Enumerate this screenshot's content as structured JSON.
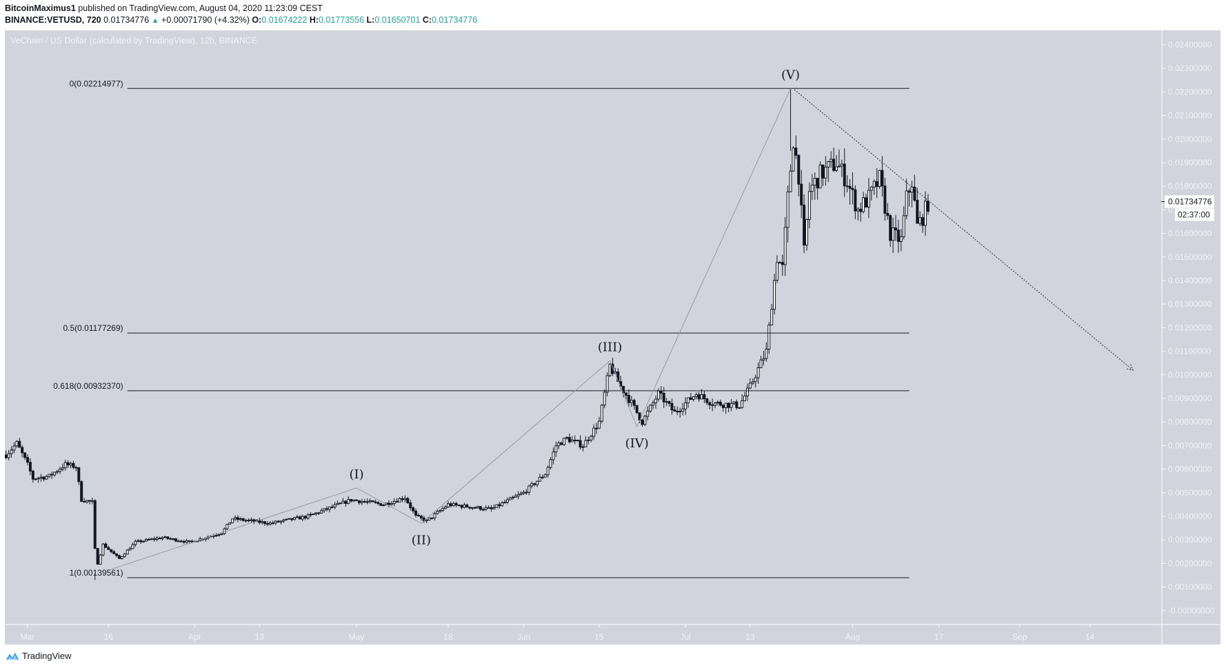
{
  "header": {
    "author": "BitcoinMaximus1",
    "published_text": "published on TradingView.com, August 04, 2020 11:23:09 CEST",
    "symbol": "BINANCE:VETUSD, 720",
    "last_price": "0.01734776",
    "change": "+0.00071790 (+4.32%)",
    "o_label": "O:",
    "o_value": "0.01674222",
    "h_label": "H:",
    "h_value": "0.01773556",
    "l_label": "L:",
    "l_value": "0.01650701",
    "c_label": "C:",
    "c_value": "0.01734776"
  },
  "chart_title": "VeChain / US Dollar (calculated by TradingView), 12h, BINANCE",
  "price_label": {
    "value": "0.01734776",
    "countdown": "02:37:00"
  },
  "footer": {
    "brand": "TradingView"
  },
  "colors": {
    "pane_bg": "#d1d4dc",
    "axis_text": "#f0f3fa",
    "candle_down": "#131722",
    "candle_up_fill": "#ffffff",
    "header_values": "#26a69a",
    "logo": "#2196f3"
  },
  "chart_data": {
    "type": "candlestick",
    "title": "VeChain / US Dollar (calculated by TradingView), 12h, BINANCE",
    "xlabel": "",
    "ylabel": "",
    "ylim": [
      -0.0,
      0.024
    ],
    "y_ticks": [
      "0.02400000",
      "0.02300000",
      "0.02200000",
      "0.02100000",
      "0.02000000",
      "0.01900000",
      "0.01800000",
      "0.01700000",
      "0.01600000",
      "0.01500000",
      "0.01400000",
      "0.01300000",
      "0.01200000",
      "0.01100000",
      "0.01000000",
      "0.00900000",
      "0.00800000",
      "0.00700000",
      "0.00600000",
      "0.00500000",
      "0.00400000",
      "0.00300000",
      "0.00200000",
      "0.00100000",
      "-0.00000000"
    ],
    "x_ticks": [
      {
        "label": "Mar",
        "day": 0
      },
      {
        "label": "16",
        "day": 15
      },
      {
        "label": "Apr",
        "day": 31
      },
      {
        "label": "13",
        "day": 43
      },
      {
        "label": "May",
        "day": 61
      },
      {
        "label": "18",
        "day": 78
      },
      {
        "label": "Jun",
        "day": 92
      },
      {
        "label": "15",
        "day": 106
      },
      {
        "label": "Jul",
        "day": 122
      },
      {
        "label": "13",
        "day": 134
      },
      {
        "label": "Aug",
        "day": 153
      },
      {
        "label": "17",
        "day": 169
      },
      {
        "label": "Sep",
        "day": 184
      },
      {
        "label": "14",
        "day": 197
      }
    ],
    "price_path_keypoints": [
      {
        "day": -4,
        "price": 0.0066
      },
      {
        "day": -2,
        "price": 0.0071
      },
      {
        "day": 0,
        "price": 0.0062
      },
      {
        "day": 1,
        "price": 0.0056
      },
      {
        "day": 4,
        "price": 0.0057
      },
      {
        "day": 7,
        "price": 0.0062
      },
      {
        "day": 9,
        "price": 0.0061
      },
      {
        "day": 10,
        "price": 0.0047
      },
      {
        "day": 12,
        "price": 0.0046
      },
      {
        "day": 12.5,
        "price": 0.0026
      },
      {
        "day": 13,
        "price": 0.002
      },
      {
        "day": 14,
        "price": 0.0028
      },
      {
        "day": 16,
        "price": 0.0024
      },
      {
        "day": 17,
        "price": 0.0022
      },
      {
        "day": 20,
        "price": 0.0029
      },
      {
        "day": 25,
        "price": 0.0031
      },
      {
        "day": 30,
        "price": 0.0029
      },
      {
        "day": 36,
        "price": 0.0033
      },
      {
        "day": 38,
        "price": 0.0039
      },
      {
        "day": 45,
        "price": 0.0037
      },
      {
        "day": 52,
        "price": 0.004
      },
      {
        "day": 60,
        "price": 0.0047
      },
      {
        "day": 66,
        "price": 0.0045
      },
      {
        "day": 70,
        "price": 0.0048
      },
      {
        "day": 72,
        "price": 0.004
      },
      {
        "day": 74,
        "price": 0.0038
      },
      {
        "day": 78,
        "price": 0.0045
      },
      {
        "day": 86,
        "price": 0.0043
      },
      {
        "day": 92,
        "price": 0.005
      },
      {
        "day": 96,
        "price": 0.0058
      },
      {
        "day": 98,
        "price": 0.007
      },
      {
        "day": 100,
        "price": 0.0073
      },
      {
        "day": 103,
        "price": 0.007
      },
      {
        "day": 106,
        "price": 0.008
      },
      {
        "day": 108,
        "price": 0.0104
      },
      {
        "day": 110,
        "price": 0.0095
      },
      {
        "day": 112,
        "price": 0.0088
      },
      {
        "day": 114,
        "price": 0.008
      },
      {
        "day": 117,
        "price": 0.0092
      },
      {
        "day": 120,
        "price": 0.0084
      },
      {
        "day": 124,
        "price": 0.0092
      },
      {
        "day": 127,
        "price": 0.0088
      },
      {
        "day": 132,
        "price": 0.0087
      },
      {
        "day": 134,
        "price": 0.0095
      },
      {
        "day": 137,
        "price": 0.011
      },
      {
        "day": 139,
        "price": 0.015
      },
      {
        "day": 140,
        "price": 0.0145
      },
      {
        "day": 141,
        "price": 0.0175
      },
      {
        "day": 142,
        "price": 0.02
      },
      {
        "day": 143,
        "price": 0.0185
      },
      {
        "day": 144,
        "price": 0.0152
      },
      {
        "day": 145,
        "price": 0.0178
      },
      {
        "day": 147,
        "price": 0.0185
      },
      {
        "day": 150,
        "price": 0.019
      },
      {
        "day": 152,
        "price": 0.0182
      },
      {
        "day": 154,
        "price": 0.017
      },
      {
        "day": 156,
        "price": 0.0175
      },
      {
        "day": 158,
        "price": 0.0183
      },
      {
        "day": 160,
        "price": 0.016
      },
      {
        "day": 162,
        "price": 0.0157
      },
      {
        "day": 163,
        "price": 0.0175
      },
      {
        "day": 164,
        "price": 0.0182
      },
      {
        "day": 165,
        "price": 0.0163
      },
      {
        "day": 166,
        "price": 0.0167
      },
      {
        "day": 167,
        "price": 0.0173
      }
    ],
    "fib_levels": [
      {
        "label": "0(0.02214977)",
        "ratio": 0,
        "price": 0.02214977
      },
      {
        "label": "0.5(0.01177269)",
        "ratio": 0.5,
        "price": 0.01177269
      },
      {
        "label": "0.618(0.00932370)",
        "ratio": 0.618,
        "price": 0.0093237
      },
      {
        "label": "1(0.00139561)",
        "ratio": 1,
        "price": 0.00139561
      }
    ],
    "fib_x_range_days": [
      18.5,
      163.5
    ],
    "elliott_waves": [
      {
        "label": "",
        "day": 15.5,
        "price": 0.00175
      },
      {
        "label": "(I)",
        "day": 61,
        "price": 0.0052,
        "label_pos": "above"
      },
      {
        "label": "(II)",
        "day": 73,
        "price": 0.0037,
        "label_pos": "below"
      },
      {
        "label": "(III)",
        "day": 108,
        "price": 0.0106,
        "label_pos": "above"
      },
      {
        "label": "(IV)",
        "day": 113,
        "price": 0.0078,
        "label_pos": "below"
      },
      {
        "label": "(V)",
        "day": 141.5,
        "price": 0.02215,
        "label_pos": "above"
      }
    ],
    "trendline": {
      "style": "dotted-arrow",
      "from": {
        "day": 142.2,
        "price": 0.0221
      },
      "to": {
        "day": 205,
        "price": 0.0102
      }
    }
  }
}
